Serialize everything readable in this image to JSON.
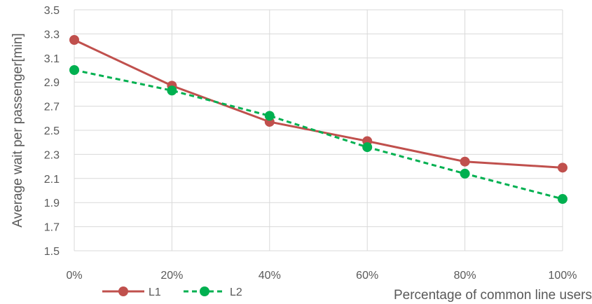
{
  "chart_data": {
    "type": "line",
    "categories": [
      "0%",
      "20%",
      "40%",
      "60%",
      "80%",
      "100%"
    ],
    "y_ticks": [
      "1.5",
      "1.7",
      "1.9",
      "2.1",
      "2.3",
      "2.5",
      "2.7",
      "2.9",
      "3.1",
      "3.3",
      "3.5"
    ],
    "ylim": [
      1.5,
      3.5
    ],
    "xlabel": "Percentage of common line users",
    "ylabel": "Average wait per passenger[min]",
    "grid": true,
    "legend_position": "bottom-left",
    "series": [
      {
        "name": "L1",
        "color": "#C0504D",
        "line_style": "solid",
        "marker": "circle",
        "values": [
          3.25,
          2.87,
          2.57,
          2.41,
          2.24,
          2.19
        ]
      },
      {
        "name": "L2",
        "color": "#00B050",
        "line_style": "dashed",
        "marker": "circle",
        "values": [
          3.0,
          2.83,
          2.62,
          2.36,
          2.14,
          1.93
        ]
      }
    ]
  }
}
